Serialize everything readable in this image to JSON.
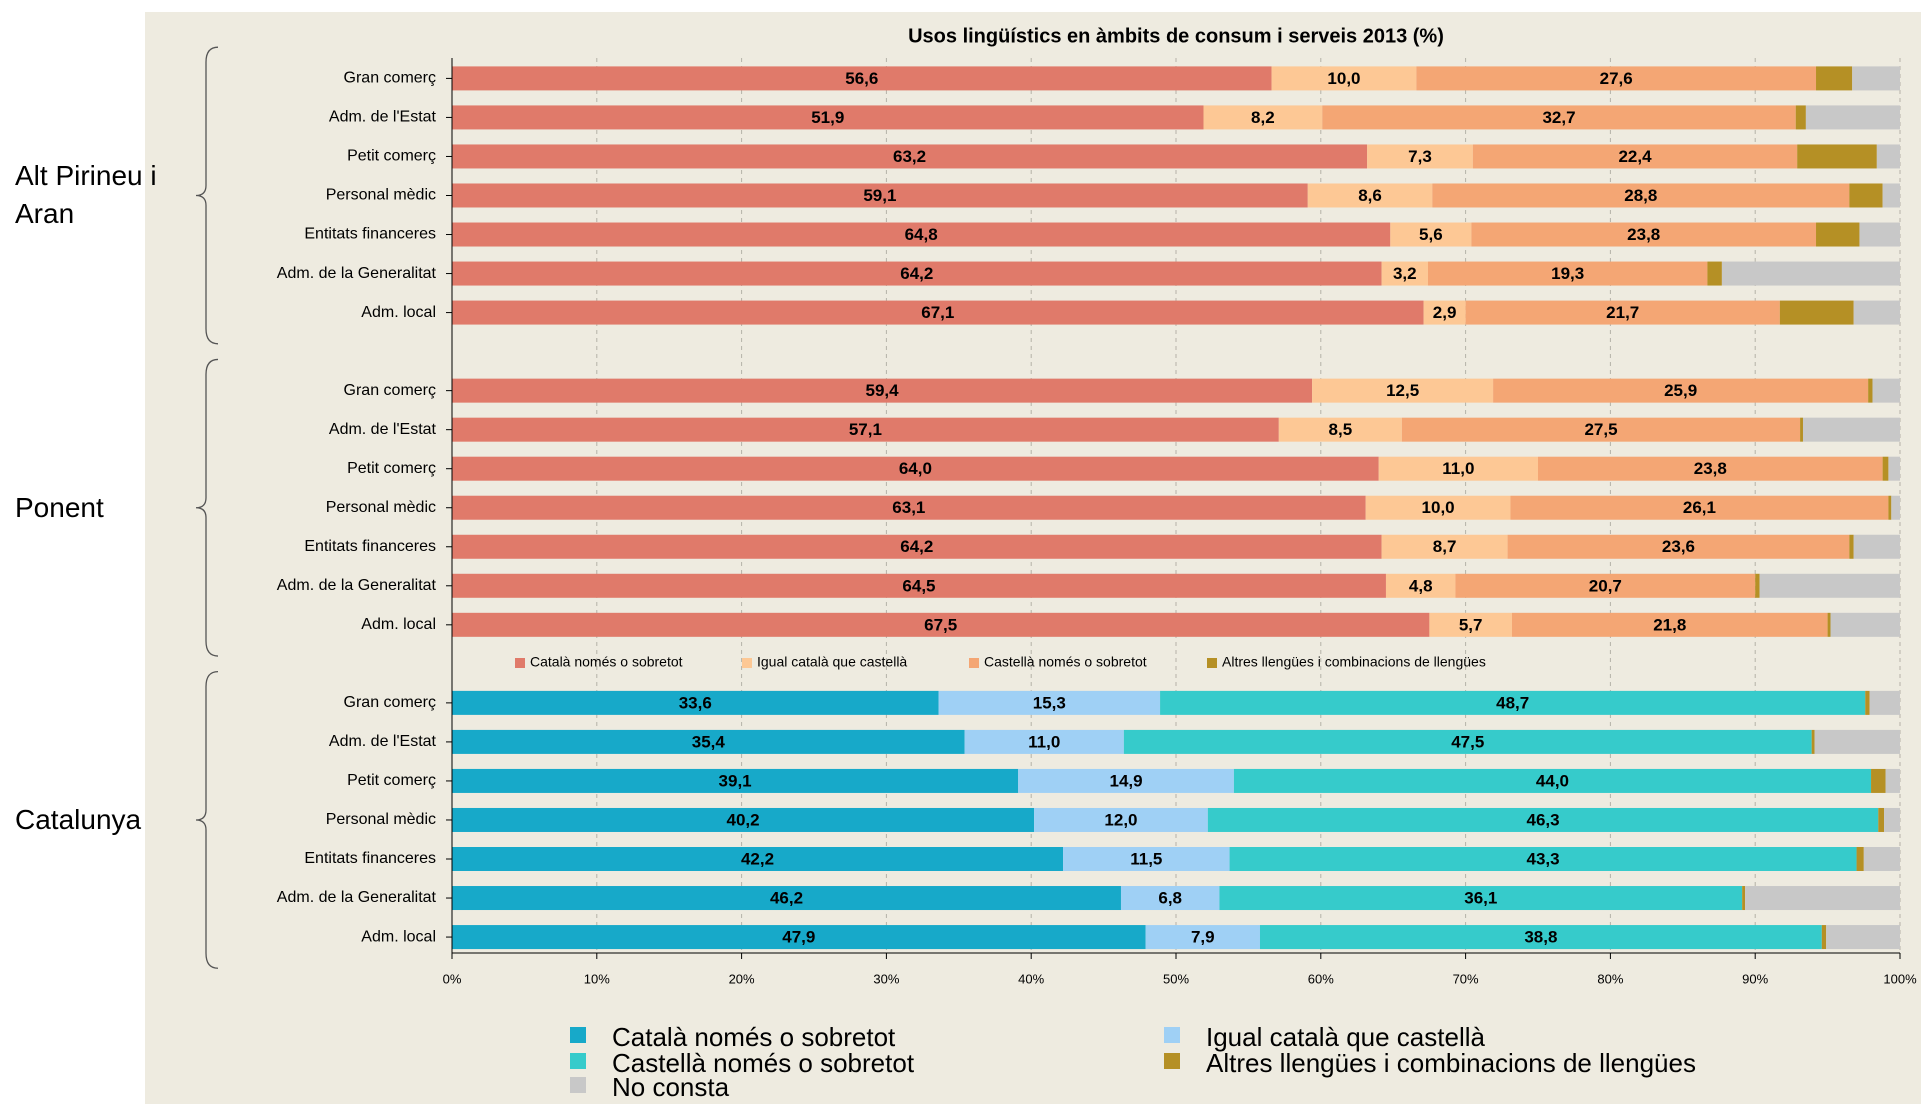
{
  "chart_data": {
    "type": "bar",
    "orientation": "horizontal",
    "stacked": true,
    "title": "Usos lingüístics en àmbits de consum i serveis 2013 (%)",
    "xlim": [
      0,
      100
    ],
    "xticks": [
      {
        "value": 0,
        "label": "0%"
      },
      {
        "value": 10,
        "label": "10%"
      },
      {
        "value": 20,
        "label": "20%"
      },
      {
        "value": 30,
        "label": "30%"
      },
      {
        "value": 40,
        "label": "40%"
      },
      {
        "value": 50,
        "label": "50%"
      },
      {
        "value": 60,
        "label": "60%"
      },
      {
        "value": 70,
        "label": "70%"
      },
      {
        "value": 80,
        "label": "80%"
      },
      {
        "value": 90,
        "label": "90%"
      },
      {
        "value": 100,
        "label": "100%"
      }
    ],
    "grid": true,
    "series": [
      {
        "name": "Català només o sobretot",
        "color": "#17a9c9",
        "alt_color": "#e07a6a"
      },
      {
        "name": "Igual català que castellà",
        "color": "#9fd0f5",
        "alt_color": "#fdc895"
      },
      {
        "name": "Castellà només o sobretot",
        "color": "#36cbcb",
        "alt_color": "#f4a674"
      },
      {
        "name": "Altres llengües i combinacions de llengües",
        "color": "#b59025",
        "alt_color": "#b59025"
      },
      {
        "name": "No consta",
        "color": "#c8c8c8",
        "alt_color": "#c8c8c8"
      }
    ],
    "groups": [
      {
        "label": "Alt Pirineu i Aran",
        "palette": "alt_color",
        "categories": [
          "Gran comerç",
          "Adm. de l'Estat",
          "Petit comerç",
          "Personal mèdic",
          "Entitats financeres",
          "Adm. de la Generalitat",
          "Adm. local"
        ],
        "values": [
          [
            56.6,
            10.0,
            27.6,
            2.5,
            3.3
          ],
          [
            51.9,
            8.2,
            32.7,
            0.7,
            6.5
          ],
          [
            63.2,
            7.3,
            22.4,
            5.5,
            1.6
          ],
          [
            59.1,
            8.6,
            28.8,
            2.3,
            1.2
          ],
          [
            64.8,
            5.6,
            23.8,
            3.0,
            2.8
          ],
          [
            64.2,
            3.2,
            19.3,
            1.0,
            12.3
          ],
          [
            67.1,
            2.9,
            21.7,
            5.1,
            3.2
          ]
        ],
        "value_labels": [
          [
            "56,6",
            "10,0",
            "27,6"
          ],
          [
            "51,9",
            "8,2",
            "32,7"
          ],
          [
            "63,2",
            "7,3",
            "22,4"
          ],
          [
            "59,1",
            "8,6",
            "28,8"
          ],
          [
            "64,8",
            "5,6",
            "23,8"
          ],
          [
            "64,2",
            "3,2",
            "19,3"
          ],
          [
            "67,1",
            "2,9",
            "21,7"
          ]
        ]
      },
      {
        "label": "Ponent",
        "palette": "alt_color",
        "categories": [
          "Gran comerç",
          "Adm. de l'Estat",
          "Petit comerç",
          "Personal mèdic",
          "Entitats financeres",
          "Adm. de la Generalitat",
          "Adm. local"
        ],
        "values": [
          [
            59.4,
            12.5,
            25.9,
            0.3,
            1.9
          ],
          [
            57.1,
            8.5,
            27.5,
            0.2,
            6.7
          ],
          [
            64.0,
            11.0,
            23.8,
            0.4,
            0.8
          ],
          [
            63.1,
            10.0,
            26.1,
            0.2,
            0.6
          ],
          [
            64.2,
            8.7,
            23.6,
            0.3,
            3.2
          ],
          [
            64.5,
            4.8,
            20.7,
            0.3,
            9.7
          ],
          [
            67.5,
            5.7,
            21.8,
            0.2,
            4.8
          ]
        ],
        "value_labels": [
          [
            "59,4",
            "12,5",
            "25,9"
          ],
          [
            "57,1",
            "8,5",
            "27,5"
          ],
          [
            "64,0",
            "11,0",
            "23,8"
          ],
          [
            "63,1",
            "10,0",
            "26,1"
          ],
          [
            "64,2",
            "8,7",
            "23,6"
          ],
          [
            "64,5",
            "4,8",
            "20,7"
          ],
          [
            "67,5",
            "5,7",
            "21,8"
          ]
        ]
      },
      {
        "label": "Catalunya",
        "palette": "color",
        "categories": [
          "Gran comerç",
          "Adm. de l'Estat",
          "Petit comerç",
          "Personal mèdic",
          "Entitats financeres",
          "Adm. de la Generalitat",
          "Adm. local"
        ],
        "values": [
          [
            33.6,
            15.3,
            48.7,
            0.3,
            2.1
          ],
          [
            35.4,
            11.0,
            47.5,
            0.2,
            5.9
          ],
          [
            39.1,
            14.9,
            44.0,
            1.0,
            1.0
          ],
          [
            40.2,
            12.0,
            46.3,
            0.4,
            1.1
          ],
          [
            42.2,
            11.5,
            43.3,
            0.5,
            2.5
          ],
          [
            46.2,
            6.8,
            36.1,
            0.2,
            10.7
          ],
          [
            47.9,
            7.9,
            38.8,
            0.3,
            5.1
          ]
        ],
        "value_labels": [
          [
            "33,6",
            "15,3",
            "48,7"
          ],
          [
            "35,4",
            "11,0",
            "47,5"
          ],
          [
            "39,1",
            "14,9",
            "44,0"
          ],
          [
            "40,2",
            "12,0",
            "46,3"
          ],
          [
            "42,2",
            "11,5",
            "43,3"
          ],
          [
            "46,2",
            "6,8",
            "36,1"
          ],
          [
            "47,9",
            "7,9",
            "38,8"
          ]
        ]
      }
    ]
  }
}
